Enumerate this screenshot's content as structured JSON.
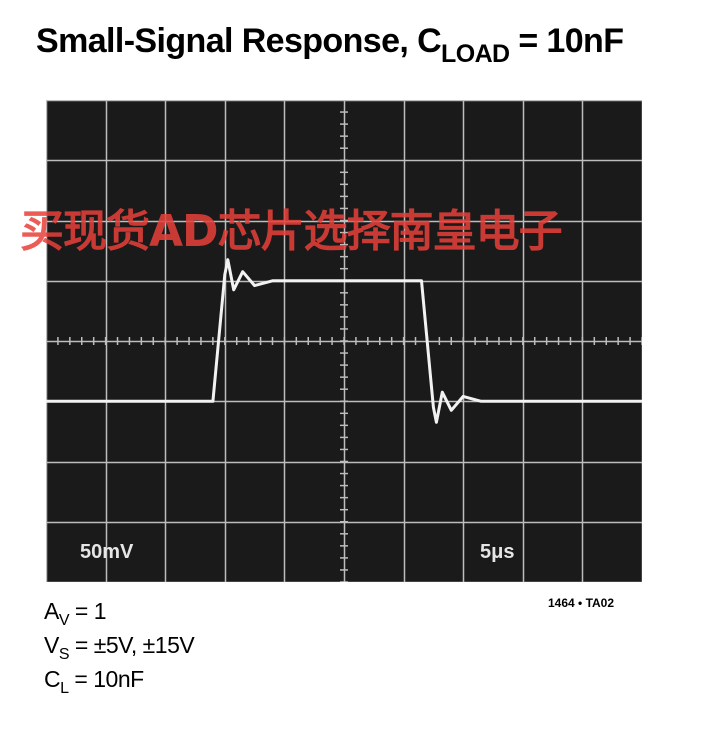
{
  "title": {
    "main": "Small-Signal Response, C",
    "sub": "LOAD",
    "rest": " = 10nF"
  },
  "watermark": "买现货AD芯片选择南皇电子",
  "figure_id": "1464 • TA02",
  "conditions": [
    {
      "sym": "A",
      "sub": "V",
      "val": " = 1"
    },
    {
      "sym": "V",
      "sub": "S",
      "val": " = ±5V, ±15V"
    },
    {
      "sym": "C",
      "sub": "L",
      "val": " = 10nF"
    }
  ],
  "colors": {
    "screen": "#1a1a1a",
    "grid": "#bdbdbd",
    "trace": "#f2f2f2",
    "watermark": "#e8403a"
  },
  "chart_data": {
    "type": "line",
    "title": "Small-Signal Response, CLOAD = 10nF",
    "grid": true,
    "divisions": {
      "x": 10,
      "y": 8
    },
    "scale_labels": {
      "vertical": "50mV",
      "horizontal": "5μs"
    },
    "x": [
      0,
      2.8,
      3.0,
      3.05,
      3.15,
      3.3,
      3.5,
      3.8,
      4.5,
      6.3,
      6.5,
      6.55,
      6.65,
      6.8,
      7.0,
      7.3,
      8.0,
      10
    ],
    "series": [
      {
        "values": [
          -1,
          -1,
          1.1,
          1.35,
          0.85,
          1.15,
          0.92,
          1.0,
          1,
          1,
          -1.1,
          -1.35,
          -0.85,
          -1.15,
          -0.92,
          -1.0,
          -1,
          -1
        ]
      }
    ],
    "ylim": [
      -4,
      4
    ],
    "xlim": [
      0,
      10
    ]
  }
}
